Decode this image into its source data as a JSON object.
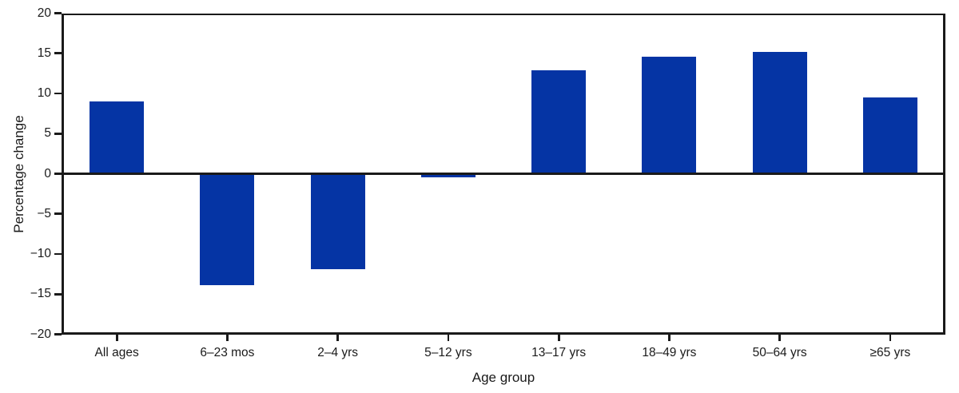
{
  "chart_data": {
    "type": "bar",
    "title": "",
    "xlabel": "Age group",
    "ylabel": "Percentage change",
    "categories": [
      "All ages",
      "6–23 mos",
      "2–4 yrs",
      "5–12 yrs",
      "13–17 yrs",
      "18–49 yrs",
      "50–64 yrs",
      "≥65 yrs"
    ],
    "values": [
      9.0,
      -13.9,
      -11.9,
      -0.4,
      12.9,
      14.6,
      15.2,
      9.5
    ],
    "ylim": [
      -20,
      20
    ],
    "yticks": [
      20,
      15,
      10,
      5,
      0,
      -5,
      -10,
      -15,
      -20
    ],
    "ytick_labels": [
      "20",
      "15",
      "10",
      "5",
      "0",
      "−5",
      "−10",
      "−15",
      "−20"
    ],
    "bar_color": "#0534a4",
    "axis_color": "#1a1a1a",
    "background": "#ffffff",
    "grid": false,
    "legend_position": "none"
  }
}
